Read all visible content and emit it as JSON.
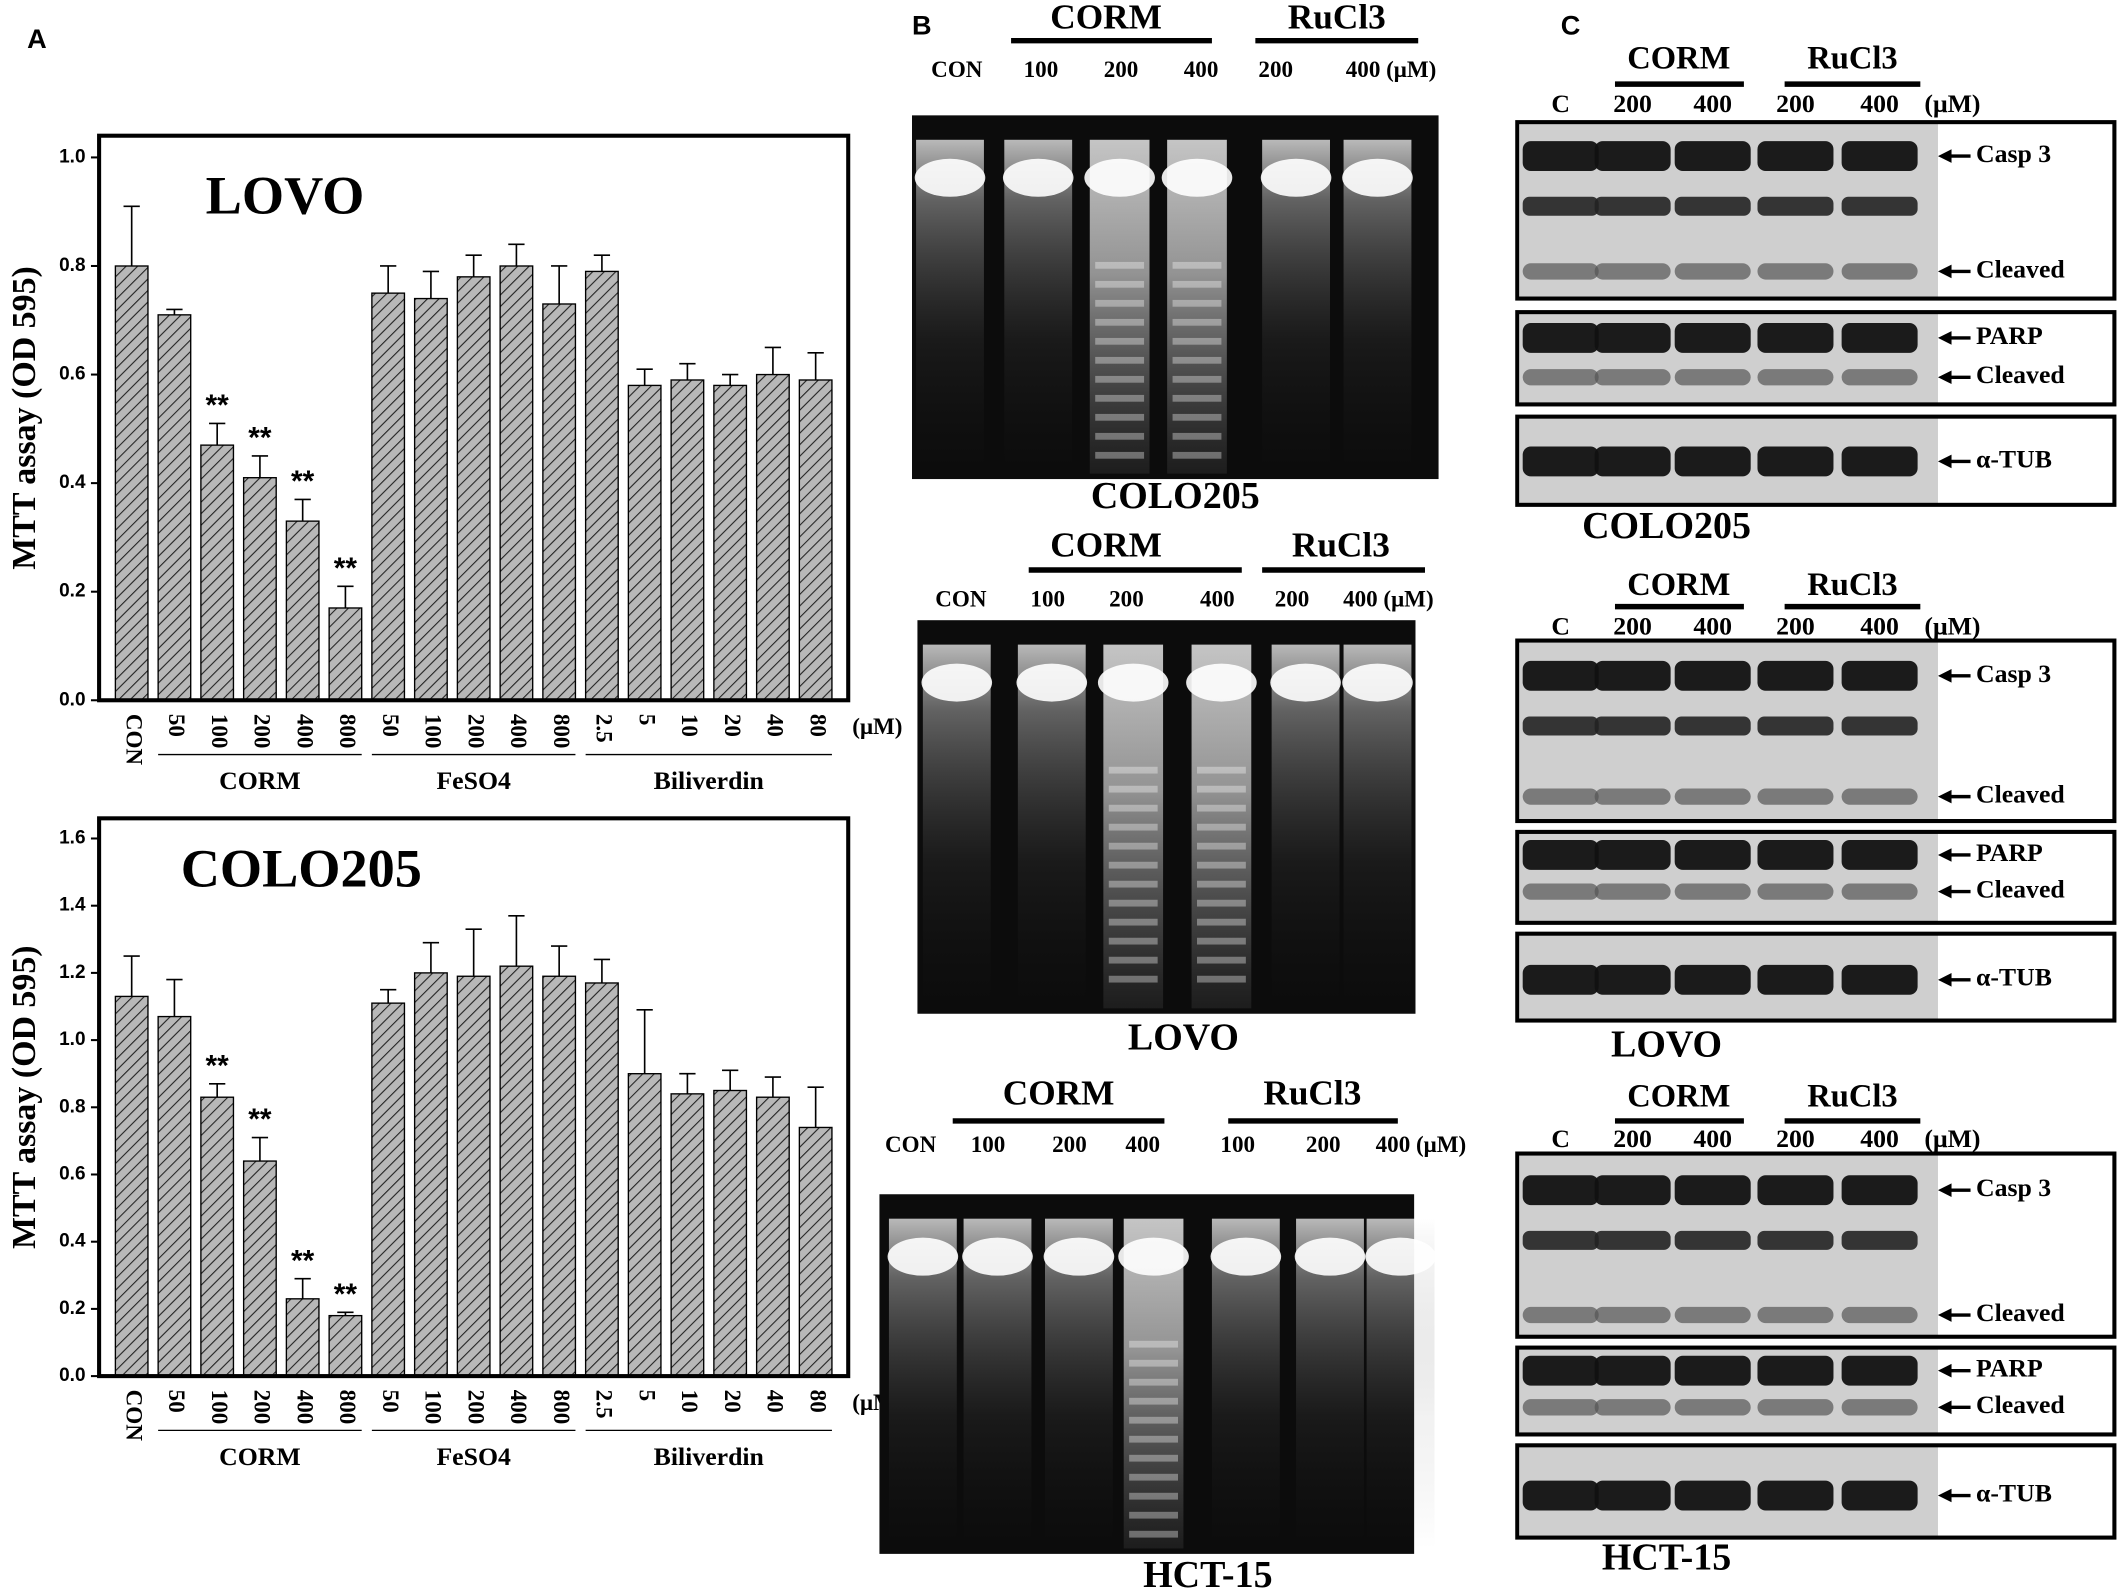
{
  "panel_labels": [
    "A",
    "B",
    "C"
  ],
  "chart_data": [
    {
      "type": "bar",
      "title": "LOVO",
      "y_label": "MTT assay (OD 595)",
      "x_unit": "(μM)",
      "categories": [
        "CON",
        "50",
        "100",
        "200",
        "400",
        "800",
        "50",
        "100",
        "200",
        "400",
        "800",
        "2.5",
        "5",
        "10",
        "20",
        "40",
        "80"
      ],
      "values": [
        0.8,
        0.71,
        0.47,
        0.41,
        0.33,
        0.17,
        0.75,
        0.74,
        0.78,
        0.8,
        0.73,
        0.79,
        0.58,
        0.59,
        0.58,
        0.6,
        0.59
      ],
      "errors": [
        0.11,
        0.01,
        0.04,
        0.04,
        0.04,
        0.04,
        0.05,
        0.05,
        0.04,
        0.04,
        0.07,
        0.03,
        0.03,
        0.03,
        0.02,
        0.05,
        0.05
      ],
      "significance": [
        null,
        null,
        "**",
        "**",
        "**",
        "**",
        null,
        null,
        null,
        null,
        null,
        null,
        null,
        null,
        null,
        null,
        null
      ],
      "group_labels": [
        "CORM",
        "FeSO4",
        "Biliverdin"
      ],
      "ylim": [
        0,
        1.04
      ],
      "yticks": [
        {
          "value": 0,
          "label": "0.0"
        },
        0.2,
        0.4,
        0.6,
        0.8,
        {
          "value": 1,
          "label": "1.0"
        }
      ],
      "color": "#b0b0b0"
    },
    {
      "type": "bar",
      "title": "COLO205",
      "y_label": "MTT assay (OD 595)",
      "x_unit": "(μM)",
      "categories": [
        "CON",
        "50",
        "100",
        "200",
        "400",
        "800",
        "50",
        "100",
        "200",
        "400",
        "800",
        "2.5",
        "5",
        "10",
        "20",
        "40",
        "80"
      ],
      "values": [
        1.13,
        1.07,
        0.83,
        0.64,
        0.23,
        0.18,
        1.11,
        1.2,
        1.19,
        1.22,
        1.19,
        1.17,
        0.9,
        0.84,
        0.85,
        0.83,
        0.74
      ],
      "errors": [
        0.12,
        0.11,
        0.04,
        0.07,
        0.06,
        0.01,
        0.04,
        0.09,
        0.14,
        0.15,
        0.09,
        0.07,
        0.19,
        0.06,
        0.06,
        0.06,
        0.12
      ],
      "significance": [
        null,
        null,
        "**",
        "**",
        "**",
        "**",
        null,
        null,
        null,
        null,
        null,
        null,
        null,
        null,
        null,
        null,
        null
      ],
      "group_labels": [
        "CORM",
        "FeSO4",
        "Biliverdin"
      ],
      "ylim": [
        0,
        1.66
      ],
      "yticks": [
        {
          "value": 0,
          "label": "0.0"
        },
        0.2,
        0.4,
        0.6,
        0.8,
        {
          "value": 1,
          "label": "1.0"
        },
        1.2,
        1.4,
        1.6
      ],
      "color": "#b0b0b0"
    }
  ],
  "gels": [
    {
      "caption": "COLO205",
      "groups": [
        "CORM",
        "RuCl3"
      ],
      "lanes": [
        "CON",
        "100",
        "200",
        "400",
        "200",
        "400 (μM)"
      ]
    },
    {
      "caption": "LOVO",
      "groups": [
        "CORM",
        "RuCl3"
      ],
      "lanes": [
        "CON",
        "100",
        "200",
        "400",
        "200",
        "400 (μM)"
      ]
    },
    {
      "caption": "HCT-15",
      "groups": [
        "CORM",
        "RuCl3"
      ],
      "lanes": [
        "CON",
        "100",
        "200",
        "400",
        "100",
        "200",
        "400 (μM)"
      ]
    }
  ],
  "blots": [
    {
      "caption": "COLO205",
      "groups": [
        "CORM",
        "RuCl3"
      ],
      "lanes": [
        "C",
        "200",
        "400",
        "200",
        "400"
      ],
      "unit": "(μM)",
      "bands": [
        [
          "Casp 3",
          "Cleaved"
        ],
        [
          "PARP",
          "Cleaved"
        ],
        [
          "α-TUB"
        ]
      ]
    },
    {
      "caption": "LOVO",
      "groups": [
        "CORM",
        "RuCl3"
      ],
      "lanes": [
        "C",
        "200",
        "400",
        "200",
        "400"
      ],
      "unit": "(μM)",
      "bands": [
        [
          "Casp 3",
          "Cleaved"
        ],
        [
          "PARP",
          "Cleaved"
        ],
        [
          "α-TUB"
        ]
      ]
    },
    {
      "caption": "HCT-15",
      "groups": [
        "CORM",
        "RuCl3"
      ],
      "lanes": [
        "C",
        "200",
        "400",
        "200",
        "400"
      ],
      "unit": "(μM)",
      "bands": [
        [
          "Casp 3",
          "Cleaved"
        ],
        [
          "PARP",
          "Cleaved"
        ],
        [
          "α-TUB"
        ]
      ]
    }
  ]
}
